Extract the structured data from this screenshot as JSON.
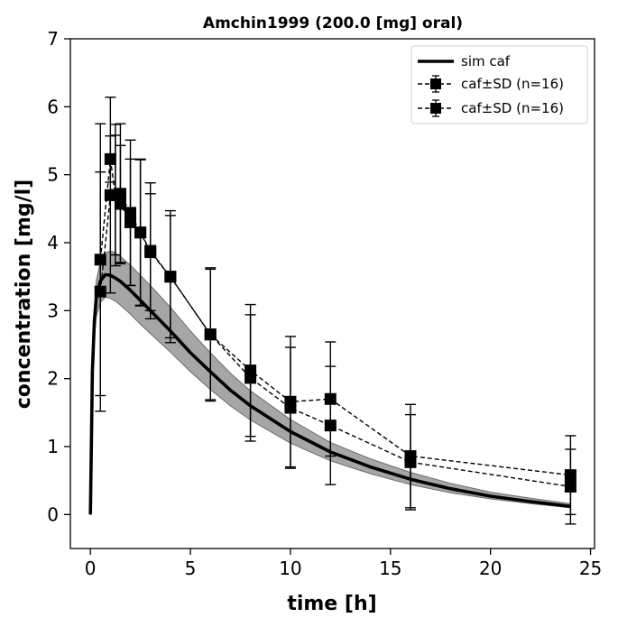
{
  "chart_data": {
    "type": "line",
    "title": "Amchin1999 (200.0 [mg] oral)",
    "xlabel": "time [h]",
    "ylabel": "concentration [mg/l]",
    "xlim": [
      -1,
      25.2
    ],
    "ylim": [
      -0.5,
      7.0
    ],
    "xticks": [
      0,
      5,
      10,
      15,
      20,
      25
    ],
    "yticks": [
      0,
      1,
      2,
      3,
      4,
      5,
      6,
      7
    ],
    "grid": false,
    "legend_position": "top-right",
    "legend": [
      "sim caf",
      "caf±SD (n=16)",
      "caf±SD (n=16)"
    ],
    "simulation": {
      "name": "sim caf",
      "color": "#000000",
      "band_color": "#808080",
      "x": [
        0,
        0.1,
        0.2,
        0.3,
        0.5,
        0.75,
        1.0,
        1.25,
        1.5,
        2,
        2.5,
        3,
        4,
        5,
        6,
        7,
        8,
        10,
        12,
        14,
        16,
        18,
        20,
        22,
        24
      ],
      "mean": [
        0,
        2.1,
        2.85,
        3.2,
        3.44,
        3.53,
        3.52,
        3.48,
        3.43,
        3.3,
        3.15,
        3.0,
        2.7,
        2.38,
        2.1,
        1.83,
        1.6,
        1.22,
        0.92,
        0.7,
        0.52,
        0.38,
        0.27,
        0.19,
        0.12
      ],
      "lower": [
        0,
        1.95,
        2.6,
        2.92,
        3.12,
        3.2,
        3.18,
        3.14,
        3.08,
        2.95,
        2.8,
        2.66,
        2.39,
        2.1,
        1.84,
        1.6,
        1.39,
        1.05,
        0.79,
        0.6,
        0.44,
        0.32,
        0.23,
        0.16,
        0.1
      ],
      "upper": [
        0,
        2.25,
        3.05,
        3.45,
        3.72,
        3.85,
        3.88,
        3.85,
        3.8,
        3.67,
        3.52,
        3.37,
        3.05,
        2.7,
        2.38,
        2.08,
        1.82,
        1.4,
        1.06,
        0.82,
        0.62,
        0.46,
        0.33,
        0.24,
        0.16
      ]
    },
    "series": [
      {
        "name": "caf±SD (n=16)",
        "color": "#000000",
        "x": [
          0.5,
          1,
          1.25,
          1.5,
          2,
          2.5,
          3,
          4,
          6,
          8,
          10,
          12,
          16,
          24
        ],
        "y": [
          3.75,
          5.23,
          4.7,
          4.72,
          4.44,
          4.15,
          3.88,
          3.5,
          2.65,
          2.12,
          1.66,
          1.7,
          0.86,
          0.58
        ],
        "sd": [
          2.0,
          0.34,
          0.88,
          1.03,
          1.07,
          1.08,
          1.0,
          0.97,
          0.98,
          0.97,
          0.96,
          0.84,
          0.76,
          0.58
        ]
      },
      {
        "name": "caf±SD (n=16)",
        "color": "#000000",
        "x": [
          0.5,
          1,
          1.25,
          1.5,
          2,
          2.5,
          3,
          4,
          6,
          8,
          10,
          12,
          16,
          24
        ],
        "y": [
          3.28,
          4.7,
          4.7,
          4.57,
          4.3,
          4.15,
          3.86,
          3.5,
          2.65,
          2.01,
          1.57,
          1.31,
          0.77,
          0.41
        ],
        "sd": [
          1.76,
          1.44,
          1.04,
          0.86,
          0.93,
          1.07,
          0.86,
          0.9,
          0.96,
          0.93,
          0.89,
          0.87,
          0.7,
          0.55
        ]
      }
    ]
  }
}
